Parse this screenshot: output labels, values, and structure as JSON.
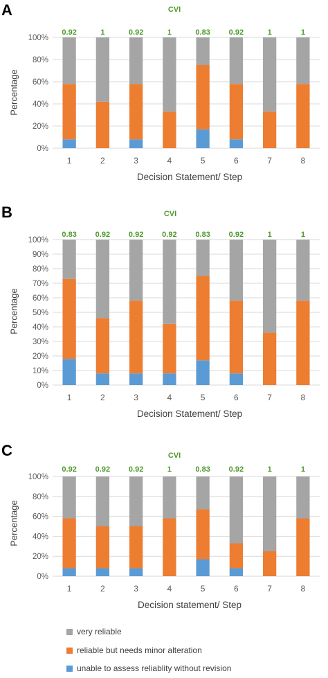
{
  "colors": {
    "very_reliable": "#a5a5a5",
    "minor_alteration": "#ed7d31",
    "unable": "#5b9bd5",
    "cvi": "#4d9a2a",
    "grid": "#d9d9d9",
    "axis_text": "#595959"
  },
  "legend": {
    "very_reliable": "very reliable",
    "minor_alteration": "reliable but needs minor alteration",
    "unable": "unable to assess reliablity without revision"
  },
  "chart_data": [
    {
      "type": "bar",
      "stacked": true,
      "panel": "A",
      "title": "CVI",
      "xlabel": "Decision Statement/ Step",
      "ylabel": "Percentage",
      "categories": [
        "1",
        "2",
        "3",
        "4",
        "5",
        "6",
        "7",
        "8"
      ],
      "ylim": [
        0,
        100
      ],
      "yticks": [
        "0%",
        "20%",
        "40%",
        "60%",
        "80%",
        "100%"
      ],
      "cvi_labels": [
        "0.92",
        "1",
        "0.92",
        "1",
        "0.83",
        "0.92",
        "1",
        "1"
      ],
      "series": [
        {
          "key": "unable",
          "values": [
            8,
            0,
            8,
            0,
            17,
            8,
            0,
            0
          ]
        },
        {
          "key": "minor_alteration",
          "values": [
            50,
            42,
            50,
            33,
            58,
            50,
            33,
            58
          ]
        },
        {
          "key": "very_reliable",
          "values": [
            42,
            58,
            42,
            67,
            25,
            42,
            67,
            42
          ]
        }
      ]
    },
    {
      "type": "bar",
      "stacked": true,
      "panel": "B",
      "title": "CVI",
      "xlabel": "Decision Statement/ Step",
      "ylabel": "Percentage",
      "categories": [
        "1",
        "2",
        "3",
        "4",
        "5",
        "6",
        "7",
        "8"
      ],
      "ylim": [
        0,
        100
      ],
      "yticks": [
        "0%",
        "10%",
        "20%",
        "30%",
        "40%",
        "50%",
        "60%",
        "70%",
        "80%",
        "90%",
        "100%"
      ],
      "cvi_labels": [
        "0.83",
        "0.92",
        "0.92",
        "0.92",
        "0.83",
        "0.92",
        "1",
        "1"
      ],
      "series": [
        {
          "key": "unable",
          "values": [
            18,
            8,
            8,
            8,
            17,
            8,
            0,
            0
          ]
        },
        {
          "key": "minor_alteration",
          "values": [
            55,
            38,
            50,
            34,
            58,
            50,
            36,
            58
          ]
        },
        {
          "key": "very_reliable",
          "values": [
            27,
            54,
            42,
            58,
            25,
            42,
            64,
            42
          ]
        }
      ]
    },
    {
      "type": "bar",
      "stacked": true,
      "panel": "C",
      "title": "CVI",
      "xlabel": "Decision statement/ Step",
      "ylabel": "Percentage",
      "categories": [
        "1",
        "2",
        "3",
        "4",
        "5",
        "6",
        "7",
        "8"
      ],
      "ylim": [
        0,
        100
      ],
      "yticks": [
        "0%",
        "20%",
        "40%",
        "60%",
        "80%",
        "100%"
      ],
      "cvi_labels": [
        "0.92",
        "0.92",
        "0.92",
        "1",
        "0.83",
        "0.92",
        "1",
        "1"
      ],
      "series": [
        {
          "key": "unable",
          "values": [
            8,
            8,
            8,
            0,
            17,
            8,
            0,
            0
          ]
        },
        {
          "key": "minor_alteration",
          "values": [
            50,
            42,
            42,
            58,
            50,
            25,
            25,
            58
          ]
        },
        {
          "key": "very_reliable",
          "values": [
            42,
            50,
            50,
            42,
            33,
            67,
            75,
            42
          ]
        }
      ]
    }
  ]
}
